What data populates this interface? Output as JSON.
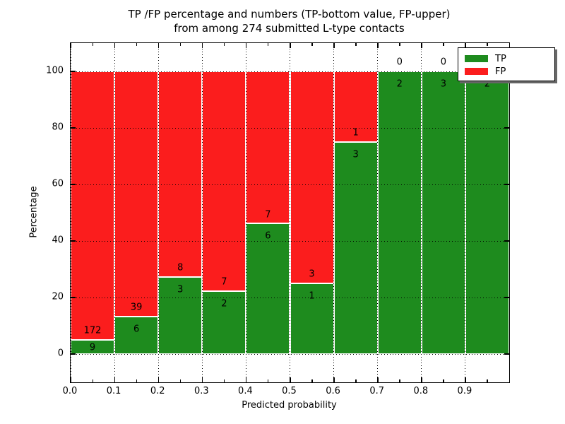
{
  "figure": {
    "title_line1": "TP /FP percentage and numbers (TP-bottom value, FP-upper)",
    "title_line2": "from among 274 submitted L-type contacts"
  },
  "axes": {
    "xlabel": "Predicted probability",
    "ylabel": "Percentage"
  },
  "legend": {
    "items": [
      {
        "label": "TP",
        "color": "#1e8b1e"
      },
      {
        "label": "FP",
        "color": "#fb1d1d"
      }
    ]
  },
  "chart_data": {
    "type": "bar",
    "stacked": true,
    "normalized_to_percent": true,
    "title": "TP /FP percentage and numbers (TP-bottom value, FP-upper)\nfrom among 274 submitted L-type contacts",
    "xlabel": "Predicted probability",
    "ylabel": "Percentage",
    "total_contacts": 274,
    "categories": [
      "0.0-0.1",
      "0.1-0.2",
      "0.2-0.3",
      "0.3-0.4",
      "0.4-0.5",
      "0.5-0.6",
      "0.6-0.7",
      "0.7-0.8",
      "0.8-0.9",
      "0.9-1.0"
    ],
    "series": [
      {
        "name": "TP",
        "color": "#1e8b1e",
        "values": [
          9,
          6,
          3,
          2,
          6,
          1,
          3,
          2,
          3,
          2
        ]
      },
      {
        "name": "FP",
        "color": "#fb1d1d",
        "values": [
          172,
          39,
          8,
          7,
          7,
          3,
          1,
          0,
          0,
          0
        ]
      }
    ],
    "xlim": [
      0,
      1.0
    ],
    "ylim": [
      -10,
      110
    ],
    "xticks": [
      0.0,
      0.1,
      0.2,
      0.3,
      0.4,
      0.5,
      0.6,
      0.7,
      0.8,
      0.9
    ],
    "xtick_labels": [
      "0.0",
      "0.1",
      "0.2",
      "0.3",
      "0.4",
      "0.5",
      "0.6",
      "0.7",
      "0.8",
      "0.9"
    ],
    "yticks": [
      0,
      20,
      40,
      60,
      80,
      100
    ],
    "ytick_labels": [
      "0",
      "20",
      "40",
      "60",
      "80",
      "100"
    ],
    "grid": true,
    "grid_style": "dotted",
    "legend_position": "upper right"
  }
}
